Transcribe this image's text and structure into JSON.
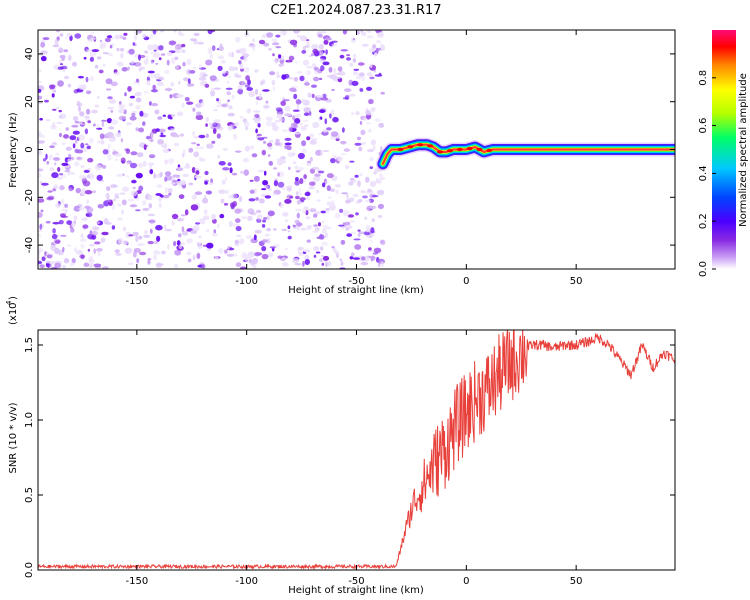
{
  "title": "C2E1.2024.087.23.31.R17",
  "colors": {
    "snr_line": "#e8413c",
    "axis": "#000000",
    "cmap": [
      "#ffffff",
      "#c79cf5",
      "#8a2be2",
      "#4a00ff",
      "#0044ff",
      "#00c8ff",
      "#00ff66",
      "#b4ff00",
      "#ffff00",
      "#ff8c00",
      "#ff0000",
      "#ff0a78"
    ]
  },
  "chart_data": [
    {
      "type": "heatmap",
      "title": "C2E1.2024.087.23.31.R17",
      "xlabel": "Height of straight line (km)",
      "ylabel": "Frequency (Hz)",
      "xlim": [
        -195,
        95
      ],
      "ylim": [
        -50,
        50
      ],
      "xticks": [
        "-150",
        "-100",
        "-50",
        "0",
        "50"
      ],
      "yticks": [
        "-40",
        "-20",
        "0",
        "20",
        "40"
      ],
      "noise_region": {
        "x": [
          -195,
          -38
        ],
        "y": [
          -50,
          50
        ]
      },
      "signal_ridge": {
        "x": [
          -38,
          -36,
          -34,
          -30,
          -26,
          -22,
          -18,
          -15,
          -12,
          -9,
          -6,
          -3,
          0,
          4,
          8,
          12,
          16,
          95
        ],
        "freq": [
          -6,
          -2,
          0,
          0,
          1,
          2,
          2,
          1,
          -1,
          -1,
          0,
          0,
          0,
          1,
          -1,
          0,
          0,
          0
        ]
      },
      "colorbar": {
        "label": "Normalized spectral amplitude",
        "range": [
          0,
          1
        ],
        "ticks": [
          "0.0",
          "0.2",
          "0.4",
          "0.6",
          "0.8"
        ]
      },
      "grid": false
    },
    {
      "type": "line",
      "xlabel": "Height of straight line (km)",
      "ylabel": "SNR (10 * v/v)",
      "ylabel_multiplier": "(x10",
      "ylabel_exponent": "4",
      "xlim": [
        -195,
        95
      ],
      "ylim": [
        0,
        1.6
      ],
      "xticks": [
        "-150",
        "-100",
        "-50",
        "0",
        "50"
      ],
      "yticks": [
        "0.0",
        "0.5",
        "1.0",
        "1.5"
      ],
      "envelope": {
        "x": [
          -195,
          -40,
          -32,
          -28,
          -24,
          -20,
          -15,
          -10,
          -5,
          0,
          5,
          10,
          15,
          20,
          25,
          30,
          35,
          40,
          45,
          50,
          55,
          60,
          65,
          70,
          75,
          80,
          85,
          90,
          95
        ],
        "y": [
          0.02,
          0.02,
          0.02,
          0.25,
          0.45,
          0.55,
          0.7,
          0.8,
          0.95,
          1.05,
          1.15,
          1.2,
          1.3,
          1.38,
          1.45,
          1.5,
          1.5,
          1.48,
          1.5,
          1.5,
          1.52,
          1.55,
          1.5,
          1.4,
          1.3,
          1.5,
          1.35,
          1.45,
          1.4
        ]
      },
      "series": [
        {
          "values_note_free": true
        }
      ],
      "grid": false
    }
  ]
}
